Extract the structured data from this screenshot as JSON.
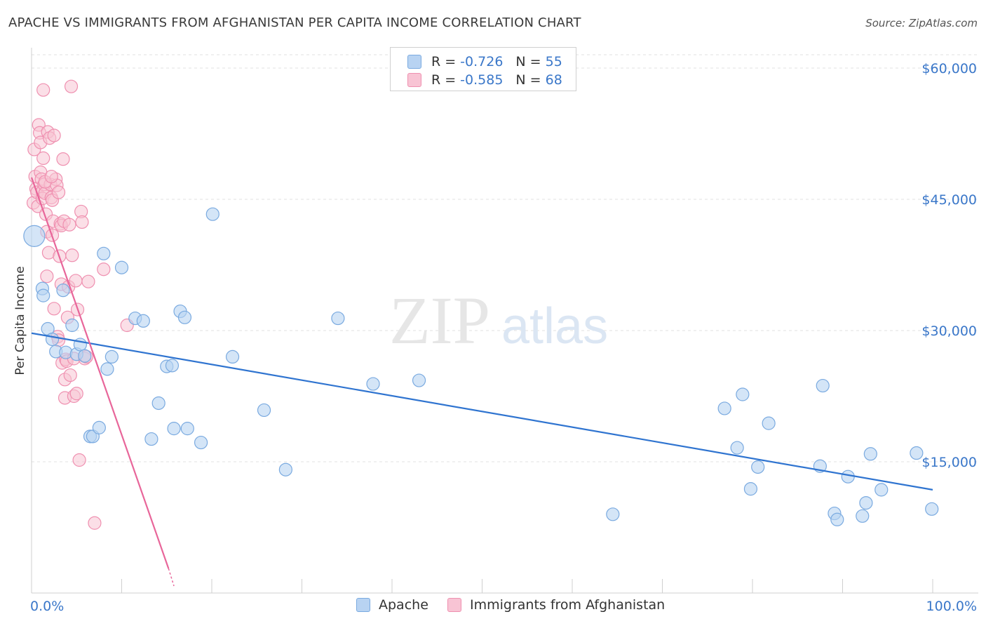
{
  "title": "APACHE VS IMMIGRANTS FROM AFGHANISTAN PER CAPITA INCOME CORRELATION CHART",
  "source": "Source: ZipAtlas.com",
  "watermark": {
    "zip": "ZIP",
    "atlas": "atlas"
  },
  "stats": [
    {
      "r_label": "R =",
      "r_value": "-0.726",
      "n_label": "N =",
      "n_value": "55"
    },
    {
      "r_label": "R =",
      "r_value": "-0.585",
      "n_label": "N =",
      "n_value": "68"
    }
  ],
  "legend": [
    {
      "name": "Apache"
    },
    {
      "name": "Immigrants from Afghanistan"
    }
  ],
  "colors": {
    "apache_fill": "#b8d3f2",
    "apache_stroke": "#7aaae0",
    "apache_line": "#2f74d0",
    "afghan_fill": "#f8c4d4",
    "afghan_stroke": "#ef90b0",
    "afghan_line": "#e8669a",
    "tick_text": "#3a77c9",
    "grid": "#e0e0e0"
  },
  "chart_data": {
    "type": "scatter",
    "xlabel": "",
    "ylabel": "Per Capita Income",
    "xlim": [
      0,
      100
    ],
    "ylim": [
      0,
      62000
    ],
    "y_ticks": [
      15000,
      30000,
      45000,
      60000
    ],
    "y_tick_labels": [
      "$15,000",
      "$30,000",
      "$45,000",
      "$60,000"
    ],
    "x_tick_labels": [
      "0.0%",
      "100.0%"
    ],
    "series": [
      {
        "name": "Apache",
        "trend": {
          "x": [
            0,
            100
          ],
          "y": [
            29700,
            11800
          ]
        },
        "points": [
          [
            0.3,
            40800
          ],
          [
            1.2,
            34800
          ],
          [
            1.3,
            34000
          ],
          [
            1.8,
            30200
          ],
          [
            2.3,
            29000
          ],
          [
            2.7,
            27600
          ],
          [
            3.5,
            34600
          ],
          [
            3.8,
            27500
          ],
          [
            4.5,
            30600
          ],
          [
            5.0,
            27300
          ],
          [
            5.4,
            28400
          ],
          [
            5.9,
            27100
          ],
          [
            6.5,
            17900
          ],
          [
            6.8,
            17900
          ],
          [
            7.5,
            18900
          ],
          [
            8.0,
            38800
          ],
          [
            8.4,
            25600
          ],
          [
            8.9,
            27000
          ],
          [
            10.0,
            37200
          ],
          [
            11.5,
            31400
          ],
          [
            12.4,
            31100
          ],
          [
            13.3,
            17600
          ],
          [
            14.1,
            21700
          ],
          [
            15.0,
            25900
          ],
          [
            15.6,
            26000
          ],
          [
            15.8,
            18800
          ],
          [
            16.5,
            32200
          ],
          [
            17.0,
            31500
          ],
          [
            17.3,
            18800
          ],
          [
            18.8,
            17200
          ],
          [
            20.1,
            43300
          ],
          [
            22.3,
            27000
          ],
          [
            25.8,
            20900
          ],
          [
            28.2,
            14100
          ],
          [
            34.0,
            31400
          ],
          [
            37.9,
            23900
          ],
          [
            43.0,
            24300
          ],
          [
            64.5,
            9000
          ],
          [
            76.9,
            21100
          ],
          [
            78.3,
            16600
          ],
          [
            78.9,
            22700
          ],
          [
            79.8,
            11900
          ],
          [
            80.6,
            14400
          ],
          [
            81.8,
            19400
          ],
          [
            87.5,
            14500
          ],
          [
            87.8,
            23700
          ],
          [
            89.1,
            9100
          ],
          [
            89.4,
            8400
          ],
          [
            90.6,
            13300
          ],
          [
            92.2,
            8800
          ],
          [
            92.6,
            10300
          ],
          [
            93.1,
            15900
          ],
          [
            94.3,
            11800
          ],
          [
            98.2,
            16000
          ],
          [
            99.9,
            9600
          ]
        ]
      },
      {
        "name": "Immigrants from Afghanistan",
        "trend": {
          "x": [
            0,
            15.2
          ],
          "y": [
            47500,
            2800
          ]
        },
        "trend_dashed": {
          "x": [
            15.2,
            15.8
          ],
          "y": [
            2800,
            800
          ]
        },
        "points": [
          [
            0.2,
            44600
          ],
          [
            0.3,
            50700
          ],
          [
            0.4,
            47600
          ],
          [
            0.5,
            46200
          ],
          [
            0.6,
            45800
          ],
          [
            0.7,
            44200
          ],
          [
            0.8,
            53500
          ],
          [
            0.9,
            52600
          ],
          [
            1.0,
            51500
          ],
          [
            1.0,
            48100
          ],
          [
            1.1,
            47300
          ],
          [
            1.2,
            45900
          ],
          [
            1.2,
            45100
          ],
          [
            1.3,
            57500
          ],
          [
            1.3,
            49700
          ],
          [
            1.4,
            46700
          ],
          [
            1.5,
            45700
          ],
          [
            1.6,
            43300
          ],
          [
            1.7,
            41300
          ],
          [
            1.7,
            36200
          ],
          [
            1.8,
            52700
          ],
          [
            1.9,
            38900
          ],
          [
            2.0,
            52000
          ],
          [
            2.1,
            46700
          ],
          [
            2.2,
            45200
          ],
          [
            2.3,
            44900
          ],
          [
            2.3,
            40900
          ],
          [
            2.4,
            42500
          ],
          [
            2.5,
            52300
          ],
          [
            2.5,
            32500
          ],
          [
            2.7,
            47300
          ],
          [
            2.8,
            46600
          ],
          [
            2.9,
            29300
          ],
          [
            3.0,
            28900
          ],
          [
            3.1,
            38500
          ],
          [
            3.2,
            42200
          ],
          [
            3.3,
            42000
          ],
          [
            3.3,
            35300
          ],
          [
            3.4,
            26300
          ],
          [
            3.5,
            49600
          ],
          [
            3.6,
            42500
          ],
          [
            3.7,
            24400
          ],
          [
            3.7,
            22300
          ],
          [
            3.8,
            26700
          ],
          [
            3.9,
            26500
          ],
          [
            4.0,
            31500
          ],
          [
            4.1,
            35000
          ],
          [
            4.2,
            42100
          ],
          [
            4.3,
            24900
          ],
          [
            4.4,
            57900
          ],
          [
            4.5,
            38600
          ],
          [
            4.7,
            26800
          ],
          [
            4.7,
            22500
          ],
          [
            4.9,
            35700
          ],
          [
            5.0,
            22800
          ],
          [
            5.1,
            32400
          ],
          [
            5.3,
            15200
          ],
          [
            5.5,
            43600
          ],
          [
            5.6,
            42400
          ],
          [
            5.9,
            26800
          ],
          [
            6.1,
            27000
          ],
          [
            6.3,
            35600
          ],
          [
            7.0,
            8000
          ],
          [
            8.0,
            37000
          ],
          [
            10.6,
            30600
          ],
          [
            1.5,
            47000
          ],
          [
            2.2,
            47600
          ],
          [
            3.0,
            45800
          ]
        ]
      }
    ]
  }
}
